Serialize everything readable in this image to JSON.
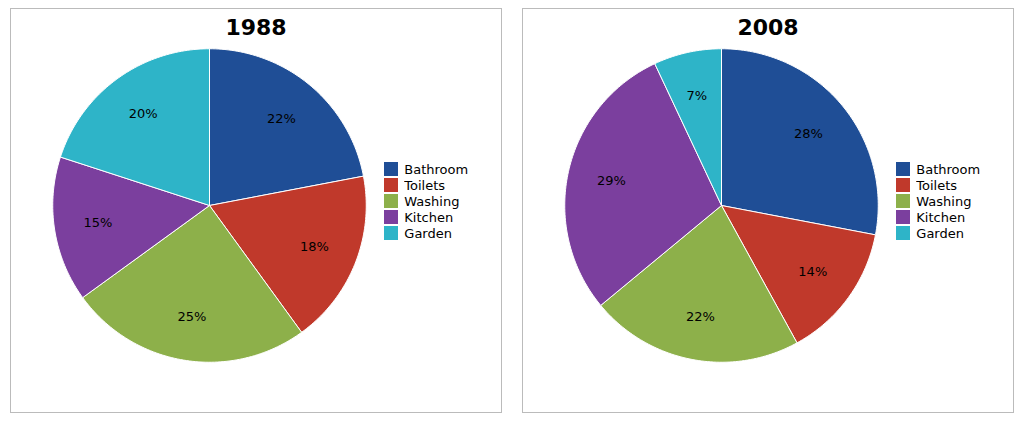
{
  "chart_data": [
    {
      "type": "pie",
      "title": "1988",
      "categories": [
        "Bathroom",
        "Toilets",
        "Washing",
        "Kitchen",
        "Garden"
      ],
      "values": [
        22,
        18,
        25,
        15,
        20
      ],
      "value_labels": [
        "22%",
        "18%",
        "25%",
        "15%",
        "20%"
      ],
      "colors": [
        "#1F4E96",
        "#C0392B",
        "#8DB04A",
        "#7B3F9E",
        "#2EB4C8"
      ],
      "data_labels": true,
      "legend": "right"
    },
    {
      "type": "pie",
      "title": "2008",
      "categories": [
        "Bathroom",
        "Toilets",
        "Washing",
        "Kitchen",
        "Garden"
      ],
      "values": [
        28,
        14,
        22,
        29,
        7
      ],
      "value_labels": [
        "28%",
        "14%",
        "22%",
        "29%",
        "7%"
      ],
      "colors": [
        "#1F4E96",
        "#C0392B",
        "#8DB04A",
        "#7B3F9E",
        "#2EB4C8"
      ],
      "data_labels": true,
      "legend": "right"
    }
  ]
}
